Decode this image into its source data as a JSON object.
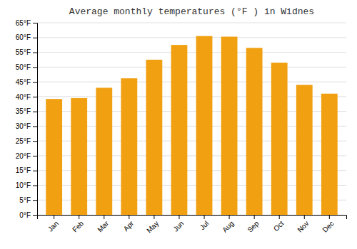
{
  "chart_data": {
    "type": "bar",
    "title": "Average monthly temperatures (°F ) in Widnes",
    "categories": [
      "Jan",
      "Feb",
      "Mar",
      "Apr",
      "May",
      "Jun",
      "Jul",
      "Aug",
      "Sep",
      "Oct",
      "Nov",
      "Dec"
    ],
    "values": [
      39.2,
      39.5,
      43.0,
      46.2,
      52.5,
      57.5,
      60.5,
      60.3,
      56.5,
      51.5,
      44.0,
      41.0
    ],
    "color": "#F0A010",
    "ylim": [
      0,
      65
    ],
    "yticks": [
      {
        "value": 0,
        "label": "0°F"
      },
      {
        "value": 5,
        "label": "5°F"
      },
      {
        "value": 10,
        "label": "10°F"
      },
      {
        "value": 15,
        "label": "15°F"
      },
      {
        "value": 20,
        "label": "20°F"
      },
      {
        "value": 25,
        "label": "25°F"
      },
      {
        "value": 30,
        "label": "30°F"
      },
      {
        "value": 35,
        "label": "35°F"
      },
      {
        "value": 40,
        "label": "40°F"
      },
      {
        "value": 45,
        "label": "45°F"
      },
      {
        "value": 50,
        "label": "50°F"
      },
      {
        "value": 55,
        "label": "55°F"
      },
      {
        "value": 60,
        "label": "60°F"
      },
      {
        "value": 65,
        "label": "65°F"
      }
    ],
    "grid": true
  }
}
